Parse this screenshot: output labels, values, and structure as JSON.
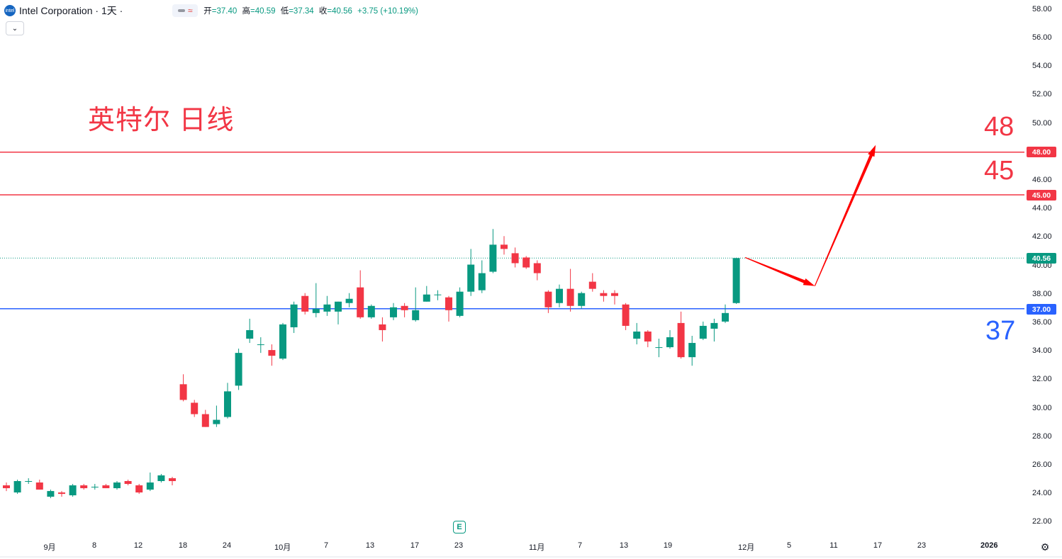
{
  "header": {
    "logo_text": "intel",
    "symbol": "Intel Corporation · 1天 ·",
    "ohlc": [
      {
        "key": "开",
        "value": "=37.40"
      },
      {
        "key": "高",
        "value": "=40.59"
      },
      {
        "key": "低",
        "value": "=37.34"
      },
      {
        "key": "收",
        "value": "=40.56"
      },
      {
        "key": "",
        "value": "+3.75 (+10.19%)"
      }
    ],
    "collapse_icon": "chevron-down-icon"
  },
  "annotations": {
    "title": "英特尔 日线",
    "label_48": "48",
    "label_45": "45",
    "label_37": "37",
    "earnings_marker": "E"
  },
  "colors": {
    "up": "#089981",
    "down": "#f23645",
    "red_line": "#f23645",
    "blue_line": "#2962ff",
    "arrow": "#ff0000"
  },
  "chart_data": {
    "type": "candlestick",
    "title": "英特尔 日线",
    "ylim": [
      21,
      59
    ],
    "yticks": [
      "22.00",
      "24.00",
      "26.00",
      "28.00",
      "30.00",
      "32.00",
      "34.00",
      "36.00",
      "38.00",
      "40.00",
      "42.00",
      "44.00",
      "46.00",
      "48.00",
      "50.00",
      "52.00",
      "54.00",
      "56.00",
      "58.00"
    ],
    "xticks": [
      "9月",
      "8",
      "12",
      "18",
      "24",
      "10月",
      "7",
      "13",
      "17",
      "23",
      "11月",
      "7",
      "13",
      "19",
      "12月",
      "5",
      "11",
      "17",
      "23",
      "2026"
    ],
    "horizontal_lines": [
      {
        "price": 48.0,
        "label": "48.00",
        "color": "#f23645"
      },
      {
        "price": 45.0,
        "label": "45.00",
        "color": "#f23645"
      },
      {
        "price": 37.0,
        "label": "37.00",
        "color": "#2962ff"
      }
    ],
    "last_price": {
      "value": 40.56,
      "label": "40.56"
    },
    "candles": [
      {
        "o": 24.6,
        "h": 24.8,
        "l": 24.2,
        "c": 24.4
      },
      {
        "o": 24.1,
        "h": 25.0,
        "l": 24.0,
        "c": 24.9
      },
      {
        "o": 24.9,
        "h": 25.1,
        "l": 24.7,
        "c": 24.9
      },
      {
        "o": 24.8,
        "h": 25.0,
        "l": 24.3,
        "c": 24.3
      },
      {
        "o": 23.8,
        "h": 24.3,
        "l": 23.7,
        "c": 24.2
      },
      {
        "o": 24.1,
        "h": 24.2,
        "l": 23.8,
        "c": 24.0
      },
      {
        "o": 23.9,
        "h": 24.7,
        "l": 23.8,
        "c": 24.6
      },
      {
        "o": 24.6,
        "h": 24.7,
        "l": 24.3,
        "c": 24.4
      },
      {
        "o": 24.5,
        "h": 24.7,
        "l": 24.3,
        "c": 24.5
      },
      {
        "o": 24.6,
        "h": 24.7,
        "l": 24.4,
        "c": 24.4
      },
      {
        "o": 24.4,
        "h": 24.9,
        "l": 24.3,
        "c": 24.8
      },
      {
        "o": 24.9,
        "h": 25.0,
        "l": 24.6,
        "c": 24.7
      },
      {
        "o": 24.6,
        "h": 24.7,
        "l": 24.0,
        "c": 24.1
      },
      {
        "o": 24.3,
        "h": 25.5,
        "l": 24.2,
        "c": 24.8
      },
      {
        "o": 24.9,
        "h": 25.4,
        "l": 24.8,
        "c": 25.3
      },
      {
        "o": 25.1,
        "h": 25.2,
        "l": 24.6,
        "c": 24.9
      },
      {
        "o": 31.7,
        "h": 32.4,
        "l": 30.5,
        "c": 30.6
      },
      {
        "o": 30.4,
        "h": 30.6,
        "l": 29.4,
        "c": 29.6
      },
      {
        "o": 29.6,
        "h": 29.9,
        "l": 28.7,
        "c": 28.7
      },
      {
        "o": 28.9,
        "h": 30.2,
        "l": 28.7,
        "c": 29.2
      },
      {
        "o": 29.4,
        "h": 31.8,
        "l": 29.3,
        "c": 31.2
      },
      {
        "o": 31.6,
        "h": 34.2,
        "l": 31.3,
        "c": 33.9
      },
      {
        "o": 34.9,
        "h": 36.3,
        "l": 34.6,
        "c": 35.5
      },
      {
        "o": 34.5,
        "h": 35.0,
        "l": 33.9,
        "c": 34.5
      },
      {
        "o": 34.1,
        "h": 34.5,
        "l": 33.0,
        "c": 33.7
      },
      {
        "o": 33.5,
        "h": 36.0,
        "l": 33.4,
        "c": 35.9
      },
      {
        "o": 35.7,
        "h": 37.5,
        "l": 35.3,
        "c": 37.3
      },
      {
        "o": 37.9,
        "h": 38.1,
        "l": 36.6,
        "c": 36.8
      },
      {
        "o": 36.7,
        "h": 38.8,
        "l": 36.4,
        "c": 37.0
      },
      {
        "o": 36.8,
        "h": 37.9,
        "l": 36.5,
        "c": 37.3
      },
      {
        "o": 36.8,
        "h": 37.5,
        "l": 35.9,
        "c": 37.5
      },
      {
        "o": 37.4,
        "h": 38.1,
        "l": 37.1,
        "c": 37.7
      },
      {
        "o": 38.5,
        "h": 39.7,
        "l": 36.3,
        "c": 36.4
      },
      {
        "o": 36.4,
        "h": 37.3,
        "l": 36.3,
        "c": 37.2
      },
      {
        "o": 35.9,
        "h": 36.4,
        "l": 34.7,
        "c": 35.5
      },
      {
        "o": 36.4,
        "h": 37.4,
        "l": 36.2,
        "c": 37.1
      },
      {
        "o": 37.2,
        "h": 37.4,
        "l": 36.4,
        "c": 36.9
      },
      {
        "o": 36.2,
        "h": 38.5,
        "l": 36.1,
        "c": 36.9
      },
      {
        "o": 37.5,
        "h": 38.6,
        "l": 37.5,
        "c": 38.0
      },
      {
        "o": 38.0,
        "h": 38.3,
        "l": 37.6,
        "c": 38.0
      },
      {
        "o": 37.8,
        "h": 37.9,
        "l": 36.1,
        "c": 36.9
      },
      {
        "o": 36.5,
        "h": 38.5,
        "l": 36.4,
        "c": 38.2
      },
      {
        "o": 38.2,
        "h": 41.2,
        "l": 37.9,
        "c": 40.1
      },
      {
        "o": 38.3,
        "h": 40.4,
        "l": 38.1,
        "c": 39.5
      },
      {
        "o": 39.6,
        "h": 42.6,
        "l": 39.5,
        "c": 41.5
      },
      {
        "o": 41.5,
        "h": 42.1,
        "l": 40.8,
        "c": 41.2
      },
      {
        "o": 40.9,
        "h": 41.3,
        "l": 39.9,
        "c": 40.2
      },
      {
        "o": 40.6,
        "h": 40.7,
        "l": 39.8,
        "c": 39.9
      },
      {
        "o": 40.2,
        "h": 40.4,
        "l": 39.0,
        "c": 39.5
      },
      {
        "o": 38.2,
        "h": 38.3,
        "l": 36.7,
        "c": 37.1
      },
      {
        "o": 37.4,
        "h": 38.7,
        "l": 37.1,
        "c": 38.4
      },
      {
        "o": 38.4,
        "h": 39.8,
        "l": 36.8,
        "c": 37.2
      },
      {
        "o": 37.2,
        "h": 38.2,
        "l": 37.0,
        "c": 38.1
      },
      {
        "o": 38.9,
        "h": 39.5,
        "l": 38.2,
        "c": 38.4
      },
      {
        "o": 38.1,
        "h": 38.3,
        "l": 37.5,
        "c": 37.9
      },
      {
        "o": 38.1,
        "h": 38.3,
        "l": 37.3,
        "c": 37.9
      },
      {
        "o": 37.3,
        "h": 37.4,
        "l": 35.5,
        "c": 35.8
      },
      {
        "o": 34.9,
        "h": 36.0,
        "l": 34.5,
        "c": 35.4
      },
      {
        "o": 35.4,
        "h": 35.5,
        "l": 34.3,
        "c": 34.7
      },
      {
        "o": 34.3,
        "h": 34.9,
        "l": 33.6,
        "c": 34.3
      },
      {
        "o": 34.3,
        "h": 35.5,
        "l": 34.2,
        "c": 35.0
      },
      {
        "o": 36.0,
        "h": 36.8,
        "l": 33.5,
        "c": 33.6
      },
      {
        "o": 33.6,
        "h": 35.1,
        "l": 33.0,
        "c": 34.6
      },
      {
        "o": 34.9,
        "h": 36.1,
        "l": 34.8,
        "c": 35.8
      },
      {
        "o": 35.6,
        "h": 36.3,
        "l": 34.7,
        "c": 36.0
      },
      {
        "o": 36.1,
        "h": 37.3,
        "l": 36.0,
        "c": 36.7
      },
      {
        "o": 37.4,
        "h": 40.59,
        "l": 37.34,
        "c": 40.56
      }
    ],
    "projection_path": [
      {
        "x_days_after_last": 0.8,
        "price": 40.6
      },
      {
        "x_days_after_last": 7.1,
        "price": 38.6
      },
      {
        "x_days_after_last": 12.6,
        "price": 48.5
      }
    ]
  }
}
